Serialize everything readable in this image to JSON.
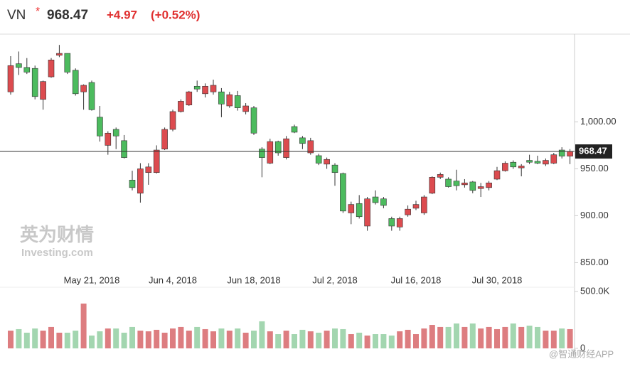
{
  "header": {
    "symbol": "VN",
    "marker": "*",
    "price": "968.47",
    "change": "+4.97",
    "change_pct": "(+0.52%)"
  },
  "watermark": {
    "cn": "英为财情",
    "en": "Investing.com",
    "source": "@智通财经APP"
  },
  "chart_data": {
    "type": "candlestick",
    "categories": [
      null,
      null,
      null,
      null,
      null,
      null,
      null,
      null,
      null,
      null,
      "May 21, 2018",
      null,
      null,
      null,
      null,
      null,
      null,
      null,
      null,
      null,
      "Jun 4, 2018",
      null,
      null,
      null,
      null,
      null,
      null,
      null,
      null,
      null,
      "Jun 18, 2018",
      null,
      null,
      null,
      null,
      null,
      null,
      null,
      null,
      null,
      "Jul 2, 2018",
      null,
      null,
      null,
      null,
      null,
      null,
      null,
      null,
      null,
      "Jul 16, 2018",
      null,
      null,
      null,
      null,
      null,
      null,
      null,
      null,
      null,
      "Jul 30, 2018",
      null,
      null,
      null,
      null,
      null,
      null,
      null,
      null,
      null
    ],
    "open": [
      1032,
      1062,
      1058,
      1057,
      1024,
      1048,
      1071,
      1073,
      1055,
      1032,
      1042,
      1005,
      975,
      992,
      980,
      938,
      924,
      946,
      946,
      971,
      992,
      1011,
      1018,
      1038,
      1030,
      1032,
      1032,
      1017,
      1028,
      1011,
      1015,
      971,
      956,
      979,
      962,
      995,
      983,
      967,
      964,
      955,
      954,
      945,
      903,
      913,
      889,
      920,
      918,
      897,
      888,
      901,
      908,
      903,
      924,
      941,
      939,
      937,
      933,
      936,
      929,
      930,
      939,
      948,
      957,
      951,
      959,
      958,
      955,
      956,
      970,
      963.5
    ],
    "high": [
      1070,
      1075,
      1068,
      1060,
      1044,
      1068,
      1082,
      1073,
      1057,
      1040,
      1044,
      1017,
      990,
      994,
      986,
      948,
      956,
      956,
      975,
      994,
      1013,
      1024,
      1033,
      1044,
      1041,
      1045,
      1036,
      1032,
      1033,
      1020,
      1017,
      973,
      982,
      980,
      985,
      997,
      985,
      983,
      966,
      962,
      956,
      946,
      915,
      922,
      920,
      927,
      920,
      899,
      899,
      911,
      916,
      922,
      942,
      946,
      941,
      949,
      939,
      937,
      935,
      937,
      952,
      958,
      959,
      955,
      965,
      964,
      961,
      967,
      973,
      971
    ],
    "low": [
      1029,
      1050,
      1051,
      1024,
      1013,
      1047,
      1069,
      1051,
      1028,
      1013,
      1012,
      979,
      965,
      971,
      961,
      927,
      914,
      933,
      945,
      970,
      990,
      1010,
      1017,
      1032,
      1026,
      1029,
      1005,
      1015,
      1012,
      1008,
      986,
      941,
      955,
      964,
      960,
      988,
      971,
      965,
      954,
      950,
      932,
      903,
      891,
      897,
      884,
      912,
      908,
      884,
      884,
      899,
      906,
      901,
      923,
      939,
      930,
      927,
      930,
      924,
      920,
      927,
      938,
      947,
      950,
      942,
      955,
      955,
      953,
      955,
      961,
      955
    ],
    "close": [
      1060,
      1058,
      1053,
      1027,
      1043,
      1066,
      1073,
      1053,
      1030,
      1039,
      1013,
      985,
      988,
      985,
      962,
      930,
      950,
      952,
      970,
      992,
      1011,
      1022,
      1032,
      1035,
      1038,
      1039,
      1019,
      1029,
      1015,
      1017,
      988,
      962,
      979,
      967,
      982,
      989,
      977,
      980,
      956,
      960,
      946,
      905,
      912,
      899,
      918,
      914,
      911,
      889,
      897,
      907,
      912,
      920,
      941,
      944,
      931,
      932,
      935,
      927,
      931,
      935,
      948,
      956,
      952,
      953,
      957,
      956,
      959,
      965,
      963.5,
      968.47
    ],
    "volume": [
      156000,
      169000,
      138000,
      175000,
      156000,
      188000,
      138000,
      138000,
      156000,
      394000,
      113000,
      150000,
      175000,
      175000,
      138000,
      188000,
      156000,
      150000,
      163000,
      138000,
      175000,
      188000,
      156000,
      188000,
      169000,
      150000,
      175000,
      156000,
      175000,
      138000,
      156000,
      238000,
      150000,
      125000,
      156000,
      125000,
      163000,
      150000,
      138000,
      156000,
      175000,
      169000,
      125000,
      138000,
      113000,
      125000,
      125000,
      113000,
      150000,
      163000,
      125000,
      175000,
      206000,
      188000,
      188000,
      219000,
      188000,
      219000,
      175000,
      188000,
      169000,
      188000,
      219000,
      188000,
      200000,
      188000,
      156000,
      156000,
      175000,
      169000
    ],
    "up_color": "#dc4b4f",
    "down_color": "#4cbb5e",
    "up_volume_color": "#dd7d80",
    "down_volume_color": "#a3d6b0",
    "ylim": [
      842,
      1092
    ],
    "yticks": [
      {
        "value": 850,
        "label": "850.00"
      },
      {
        "value": 900,
        "label": "900.00"
      },
      {
        "value": 950,
        "label": "950.00"
      },
      {
        "value": 1000,
        "label": "1,000.00"
      }
    ],
    "vlim": [
      0,
      500000
    ],
    "vticks": [
      0,
      {
        "value": 500000,
        "label": "500.0K"
      }
    ],
    "last_price": {
      "value": 968.47,
      "label": "968.47"
    }
  }
}
